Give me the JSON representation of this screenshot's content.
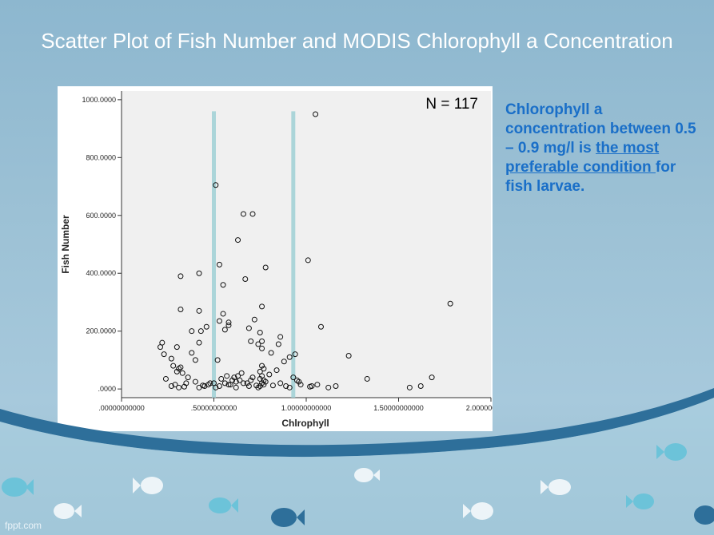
{
  "slide": {
    "title": "Scatter Plot of Fish Number and MODIS Chlorophyll a Concentration",
    "note_plain_1": "Chlorophyll a concentration between 0.5 – 0.9 mg/l is ",
    "note_underlined": "the most preferable condition ",
    "note_plain_2": "for fish larvae.",
    "footer": "fppt.com",
    "colors": {
      "background": "#9cc1d5",
      "title": "#ffffff",
      "note": "#1a6fc8",
      "wave": "#2e6f9a",
      "fish": "#6cc3d9"
    }
  },
  "chart_data": {
    "type": "scatter",
    "title": "",
    "xlabel": "Chlrophyll",
    "ylabel": "Fish Number",
    "xlim": [
      0,
      2.0
    ],
    "ylim": [
      -30,
      1030
    ],
    "xticks": [
      0,
      0.5,
      1.0,
      1.5,
      2.0
    ],
    "xtick_labels": [
      ".00000000000",
      ".50000000000",
      "1.00000000000",
      "1.50000000000",
      "2.00000000000"
    ],
    "yticks": [
      0,
      200,
      400,
      600,
      800,
      1000
    ],
    "ytick_labels": [
      ".0000",
      "200.0000",
      "400.0000",
      "600.0000",
      "800.0000",
      "1000.0000"
    ],
    "annotation": "N = 117",
    "reference_lines_x": [
      0.5,
      0.93
    ],
    "grid": false,
    "points": [
      [
        0.22,
        160
      ],
      [
        0.21,
        145
      ],
      [
        0.23,
        120
      ],
      [
        0.27,
        105
      ],
      [
        0.28,
        80
      ],
      [
        0.3,
        60
      ],
      [
        0.31,
        70
      ],
      [
        0.32,
        75
      ],
      [
        0.3,
        145
      ],
      [
        0.24,
        35
      ],
      [
        0.27,
        10
      ],
      [
        0.29,
        15
      ],
      [
        0.31,
        5
      ],
      [
        0.33,
        55
      ],
      [
        0.38,
        125
      ],
      [
        0.4,
        100
      ],
      [
        0.42,
        160
      ],
      [
        0.38,
        200
      ],
      [
        0.43,
        200
      ],
      [
        0.46,
        215
      ],
      [
        0.32,
        390
      ],
      [
        0.32,
        275
      ],
      [
        0.42,
        270
      ],
      [
        0.42,
        400
      ],
      [
        0.51,
        705
      ],
      [
        0.53,
        430
      ],
      [
        0.55,
        360
      ],
      [
        0.56,
        205
      ],
      [
        0.55,
        260
      ],
      [
        0.58,
        230
      ],
      [
        0.58,
        220
      ],
      [
        0.53,
        235
      ],
      [
        0.63,
        515
      ],
      [
        0.66,
        605
      ],
      [
        0.71,
        605
      ],
      [
        0.67,
        380
      ],
      [
        0.78,
        420
      ],
      [
        0.69,
        210
      ],
      [
        0.72,
        240
      ],
      [
        0.75,
        195
      ],
      [
        0.76,
        165
      ],
      [
        0.74,
        155
      ],
      [
        0.76,
        140
      ],
      [
        0.76,
        285
      ],
      [
        0.7,
        165
      ],
      [
        0.81,
        125
      ],
      [
        0.86,
        180
      ],
      [
        0.85,
        155
      ],
      [
        0.88,
        95
      ],
      [
        0.91,
        110
      ],
      [
        0.94,
        120
      ],
      [
        1.01,
        445
      ],
      [
        1.05,
        950
      ],
      [
        1.08,
        215
      ],
      [
        1.23,
        115
      ],
      [
        1.33,
        35
      ],
      [
        1.78,
        295
      ],
      [
        1.56,
        5
      ],
      [
        1.62,
        10
      ],
      [
        1.68,
        40
      ],
      [
        1.03,
        10
      ],
      [
        1.06,
        15
      ],
      [
        1.12,
        5
      ],
      [
        1.16,
        10
      ],
      [
        1.02,
        8
      ],
      [
        0.97,
        15
      ],
      [
        0.95,
        30
      ],
      [
        0.96,
        25
      ],
      [
        0.89,
        10
      ],
      [
        0.86,
        20
      ],
      [
        0.74,
        5
      ],
      [
        0.75,
        10
      ],
      [
        0.76,
        20
      ],
      [
        0.77,
        30
      ],
      [
        0.76,
        45
      ],
      [
        0.75,
        60
      ],
      [
        0.77,
        70
      ],
      [
        0.76,
        80
      ],
      [
        0.75,
        35
      ],
      [
        0.77,
        15
      ],
      [
        0.73,
        12
      ],
      [
        0.71,
        40
      ],
      [
        0.68,
        20
      ],
      [
        0.65,
        55
      ],
      [
        0.63,
        45
      ],
      [
        0.61,
        40
      ],
      [
        0.6,
        30
      ],
      [
        0.62,
        25
      ],
      [
        0.58,
        15
      ],
      [
        0.56,
        20
      ],
      [
        0.54,
        35
      ],
      [
        0.53,
        10
      ],
      [
        0.51,
        5
      ],
      [
        0.5,
        20
      ],
      [
        0.47,
        15
      ],
      [
        0.45,
        10
      ],
      [
        0.42,
        5
      ],
      [
        0.4,
        25
      ],
      [
        0.36,
        40
      ],
      [
        0.35,
        20
      ],
      [
        0.52,
        100
      ],
      [
        0.66,
        20
      ],
      [
        0.69,
        10
      ],
      [
        0.91,
        5
      ],
      [
        0.93,
        40
      ],
      [
        0.8,
        50
      ],
      [
        0.78,
        25
      ],
      [
        0.84,
        65
      ],
      [
        0.64,
        30
      ],
      [
        0.57,
        45
      ],
      [
        0.48,
        20
      ],
      [
        0.44,
        12
      ],
      [
        0.34,
        8
      ],
      [
        0.7,
        30
      ],
      [
        0.59,
        15
      ],
      [
        0.62,
        5
      ],
      [
        0.82,
        12
      ]
    ]
  }
}
